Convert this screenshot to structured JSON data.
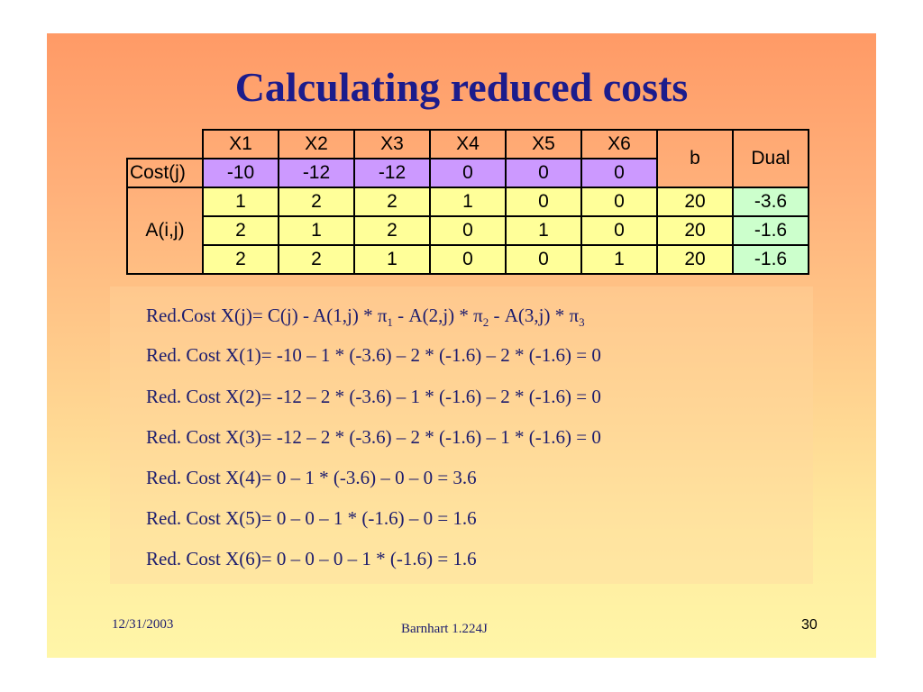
{
  "title": "Calculating reduced costs",
  "table": {
    "headers": [
      "X1",
      "X2",
      "X3",
      "X4",
      "X5",
      "X6"
    ],
    "b_header": "b",
    "dual_header": "Dual",
    "cost_label": "Cost(j)",
    "cost": [
      "-10",
      "-12",
      "-12",
      "0",
      "0",
      "0"
    ],
    "a_label": "A(i,j)",
    "rows": [
      {
        "a": [
          "1",
          "2",
          "2",
          "1",
          "0",
          "0"
        ],
        "b": "20",
        "dual": "-3.6"
      },
      {
        "a": [
          "2",
          "1",
          "2",
          "0",
          "1",
          "0"
        ],
        "b": "20",
        "dual": "-1.6"
      },
      {
        "a": [
          "2",
          "2",
          "1",
          "0",
          "0",
          "1"
        ],
        "b": "20",
        "dual": "-1.6"
      }
    ]
  },
  "formula_general": {
    "p1": "Red.Cost X(j)= C(j) - A(1,j) * π",
    "s1": "1",
    "p2": " - A(2,j) * π",
    "s2": "2",
    "p3": " - A(3,j) * π",
    "s3": "3"
  },
  "lines": [
    "Red. Cost X(1)= -10 – 1 * (-3.6) – 2 * (-1.6) – 2 * (-1.6) = 0",
    "Red. Cost X(2)= -12 – 2 * (-3.6) – 1 * (-1.6) – 2 * (-1.6) = 0",
    "Red. Cost X(3)= -12 – 2 * (-3.6) – 2 * (-1.6) – 1 * (-1.6) = 0",
    "Red. Cost X(4)= 0 – 1 * (-3.6) – 0 – 0 = 3.6",
    "Red. Cost X(5)= 0 – 0 – 1 * (-1.6) – 0 = 1.6",
    "Red. Cost X(6)= 0 – 0 – 0 – 1 * (-1.6) = 1.6"
  ],
  "footer": {
    "date": "12/31/2003",
    "center": "Barnhart 1.224J",
    "page": "30"
  },
  "colors": {
    "title": "#1c1c8c",
    "cost_fill": "#cc99ff",
    "a_fill": "#ffff99",
    "dual_fill": "#ccffcc"
  }
}
